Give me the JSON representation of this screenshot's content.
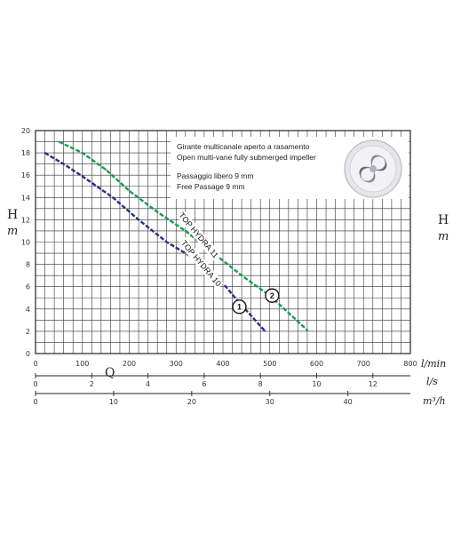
{
  "chart_data": {
    "type": "line",
    "ylabel": "H",
    "ylabel_unit": "m",
    "xlabel": "Q",
    "ylim": [
      0,
      20
    ],
    "yticks": [
      "0",
      "2",
      "4",
      "6",
      "8",
      "10",
      "12",
      "14",
      "16",
      "18",
      "20"
    ],
    "xlim": [
      0,
      800
    ],
    "x_axes": [
      {
        "unit": "l/min",
        "range": [
          0,
          800
        ],
        "ticks": [
          "0",
          "100",
          "200",
          "300",
          "400",
          "500",
          "600",
          "700",
          "800"
        ]
      },
      {
        "unit": "l/s",
        "range": [
          0,
          13.333
        ],
        "ticks": [
          "0",
          "2",
          "4",
          "6",
          "8",
          "10",
          "12"
        ]
      },
      {
        "unit": "m³/h",
        "range": [
          0,
          48
        ],
        "ticks": [
          "0",
          "10",
          "20",
          "30",
          "40"
        ]
      }
    ],
    "grid": true,
    "series": [
      {
        "name": "TOP HYDRA 10",
        "marker": "1",
        "color": "#2b2f86",
        "x": [
          20,
          60,
          100,
          165,
          220,
          280,
          340,
          390,
          430,
          490
        ],
        "y": [
          18,
          17,
          15.9,
          14,
          12,
          10,
          8.5,
          6.8,
          4.8,
          2.0
        ]
      },
      {
        "name": "TOP HYDRA 11",
        "marker": "2",
        "color": "#1a9a55",
        "x": [
          50,
          100,
          150,
          200,
          260,
          320,
          380,
          440,
          500,
          580
        ],
        "y": [
          19,
          18,
          16.5,
          14.6,
          12.7,
          11,
          9,
          7,
          5.2,
          2.1
        ]
      }
    ]
  },
  "info": {
    "line1": "Girante multicanale aperto a rasamento",
    "line2": "Open multi-vane fully submerged impeller",
    "line3": "Passaggio libero 9 mm",
    "line4": "Free Passage 9 mm"
  },
  "right_axis": {
    "label": "H",
    "unit": "m"
  }
}
